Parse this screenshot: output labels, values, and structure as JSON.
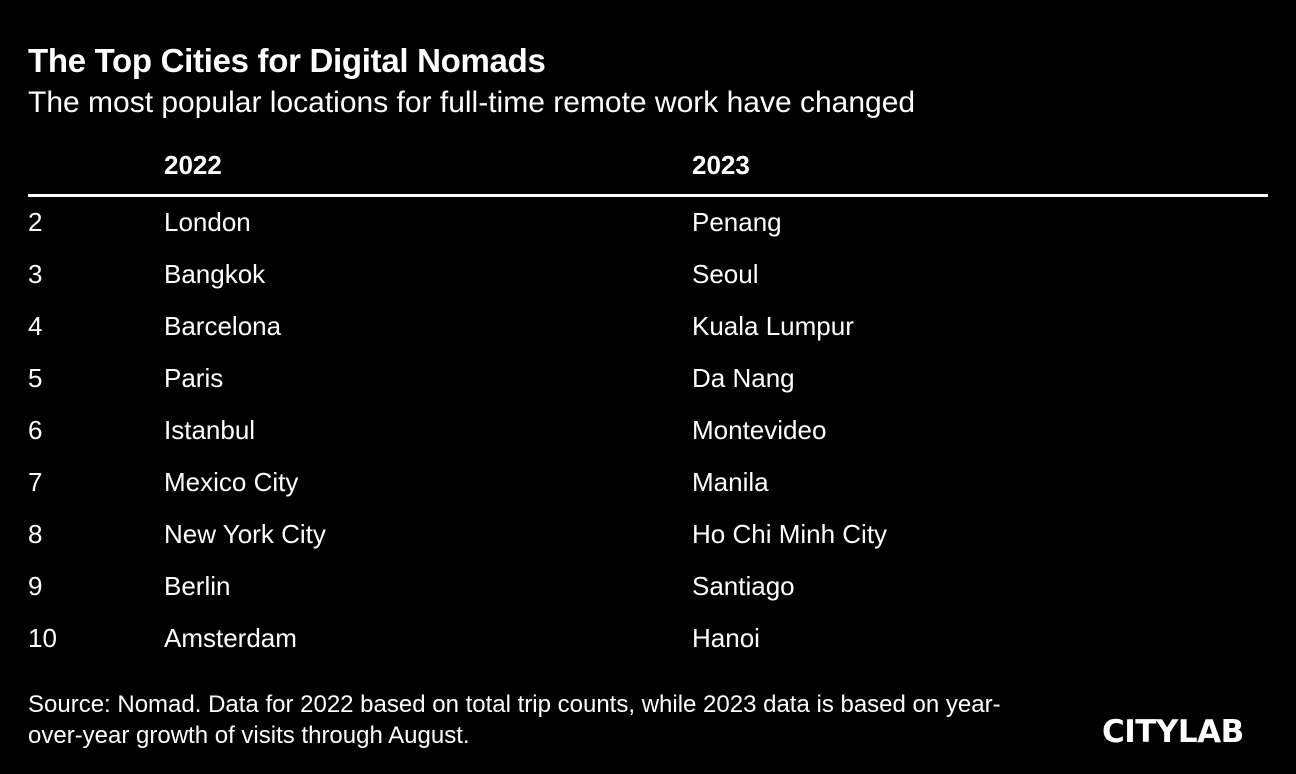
{
  "title": "The Top Cities for Digital Nomads",
  "subtitle": "The most popular locations for full-time remote work have changed",
  "chart_data": {
    "type": "table",
    "columns": [
      "",
      "2022",
      "2023"
    ],
    "rows": [
      [
        "2",
        "London",
        "Penang"
      ],
      [
        "3",
        "Bangkok",
        "Seoul"
      ],
      [
        "4",
        "Barcelona",
        "Kuala Lumpur"
      ],
      [
        "5",
        "Paris",
        "Da Nang"
      ],
      [
        "6",
        "Istanbul",
        "Montevideo"
      ],
      [
        "7",
        "Mexico City",
        "Manila"
      ],
      [
        "8",
        "New York City",
        "Ho Chi Minh City"
      ],
      [
        "9",
        "Berlin",
        "Santiago"
      ],
      [
        "10",
        "Amsterdam",
        "Hanoi"
      ]
    ]
  },
  "source": "Source: Nomad. Data for 2022 based on total trip counts, while 2023 data is based on year-over-year growth of visits through August.",
  "logo": "CITYLAB"
}
